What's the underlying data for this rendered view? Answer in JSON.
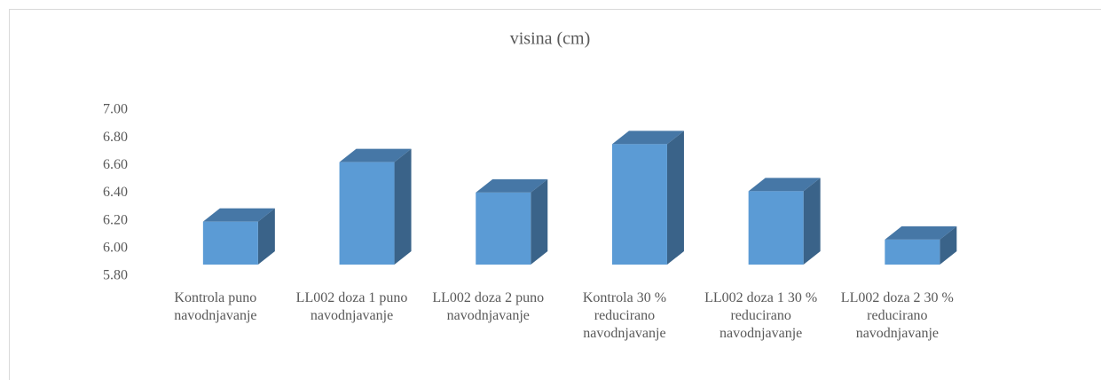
{
  "chart_data": {
    "type": "bar3d",
    "title": "visina (cm)",
    "categories": [
      "Kontrola puno navodnjavanje",
      "LL002 doza 1 puno navodnjavanje",
      "LL002 doza 2 puno navodnjavanje",
      "Kontrola 30 % reducirano navodnjavanje",
      "LL002 doza 1 30 % reducirano navodnjavanje",
      "LL002 doza 2 30 % reducirano navodnjavanje"
    ],
    "values": [
      6.29,
      6.72,
      6.5,
      6.85,
      6.51,
      6.16
    ],
    "color": "#5b9bd5",
    "ylim": [
      5.8,
      7.0
    ],
    "yticks": [
      {
        "value": 5.8,
        "label": "5.80"
      },
      {
        "value": 6.0,
        "label": "6.00"
      },
      {
        "value": 6.2,
        "label": "6.20"
      },
      {
        "value": 6.4,
        "label": "6.40"
      },
      {
        "value": 6.6,
        "label": "6.60"
      },
      {
        "value": 6.8,
        "label": "6.80"
      },
      {
        "value": 7.0,
        "label": "7.00"
      }
    ]
  }
}
